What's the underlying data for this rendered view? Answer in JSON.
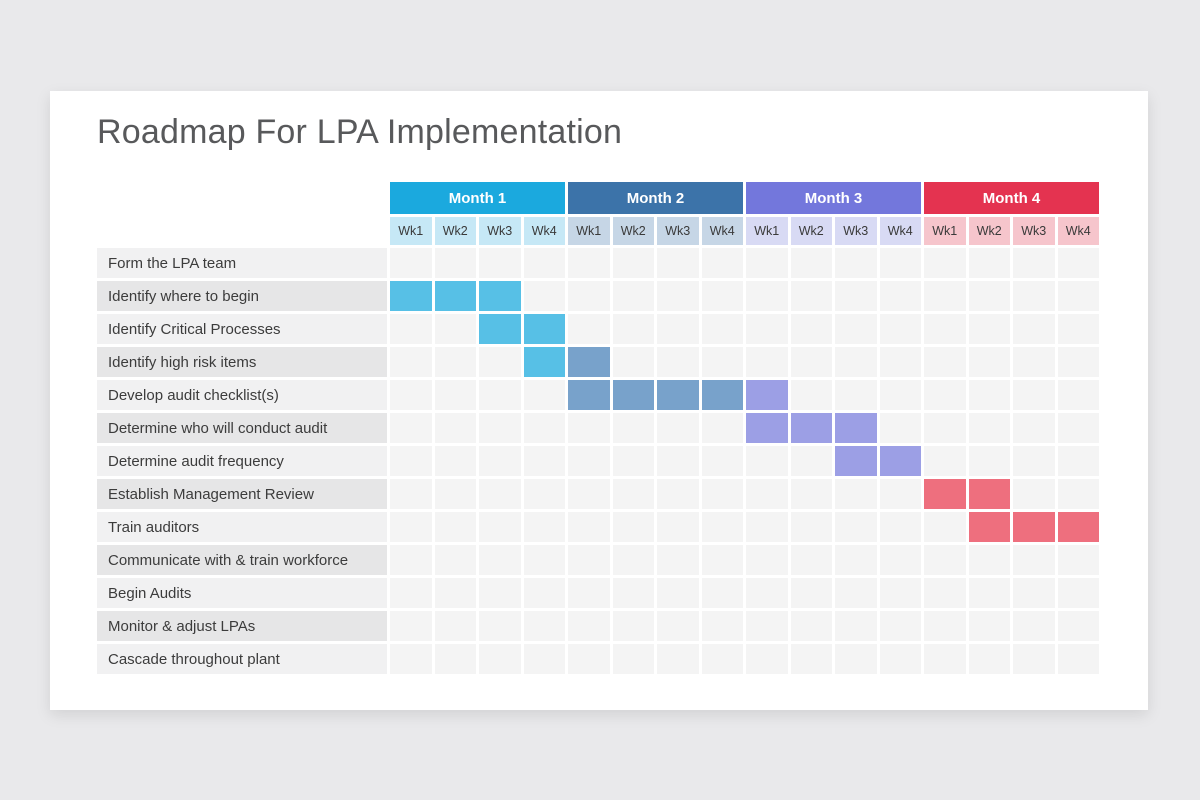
{
  "title": "Roadmap For LPA Implementation",
  "theme": {
    "page_bg": "#E9E9EB",
    "card_bg": "#FFFFFF",
    "title_color": "#58595B",
    "label_row_light": "#F1F1F2",
    "label_row_dark": "#E6E6E7",
    "grid_cell": "#F4F4F4",
    "label_text": "#3C3C3C",
    "week_text": "#3A3A3A",
    "month_text": "#FFFFFF"
  },
  "chart_data": {
    "type": "gantt",
    "title": "Roadmap For LPA Implementation",
    "weeks_per_month": 4,
    "total_weeks": 16,
    "week_labels": [
      "Wk1",
      "Wk2",
      "Wk3",
      "Wk4"
    ],
    "months": [
      {
        "label": "Month 1",
        "header_color": "#1BA9DE",
        "week_tint": "#C6E8F6",
        "bar_color": "#57C0E6"
      },
      {
        "label": "Month 2",
        "header_color": "#3C73A9",
        "week_tint": "#C6D6E6",
        "bar_color": "#78A2CB"
      },
      {
        "label": "Month 3",
        "header_color": "#7377DC",
        "week_tint": "#D8DAF4",
        "bar_color": "#9C9FE5"
      },
      {
        "label": "Month 4",
        "header_color": "#E43350",
        "week_tint": "#F6C5CC",
        "bar_color": "#EE6F7E"
      }
    ],
    "tasks": [
      {
        "label": "Form the LPA team",
        "segments": []
      },
      {
        "label": "Identify where to begin",
        "segments": [
          {
            "start": 1,
            "end": 3,
            "color": "#57C0E6"
          }
        ]
      },
      {
        "label": "Identify Critical Processes",
        "segments": [
          {
            "start": 3,
            "end": 4,
            "color": "#57C0E6"
          }
        ]
      },
      {
        "label": "Identify high risk items",
        "segments": [
          {
            "start": 4,
            "end": 4,
            "color": "#57C0E6"
          },
          {
            "start": 5,
            "end": 5,
            "color": "#78A2CB"
          }
        ]
      },
      {
        "label": "Develop audit checklist(s)",
        "segments": [
          {
            "start": 5,
            "end": 8,
            "color": "#78A2CB"
          },
          {
            "start": 9,
            "end": 9,
            "color": "#9C9FE5"
          }
        ]
      },
      {
        "label": "Determine who will conduct audit",
        "segments": [
          {
            "start": 9,
            "end": 11,
            "color": "#9C9FE5"
          }
        ]
      },
      {
        "label": "Determine audit frequency",
        "segments": [
          {
            "start": 11,
            "end": 12,
            "color": "#9C9FE5"
          }
        ]
      },
      {
        "label": "Establish Management Review",
        "segments": [
          {
            "start": 13,
            "end": 14,
            "color": "#EE6F7E"
          }
        ]
      },
      {
        "label": "Train auditors",
        "segments": [
          {
            "start": 14,
            "end": 16,
            "color": "#EE6F7E"
          }
        ]
      },
      {
        "label": "Communicate with & train workforce",
        "segments": []
      },
      {
        "label": "Begin Audits",
        "segments": []
      },
      {
        "label": "Monitor & adjust LPAs",
        "segments": []
      },
      {
        "label": "Cascade throughout plant",
        "segments": []
      }
    ]
  }
}
